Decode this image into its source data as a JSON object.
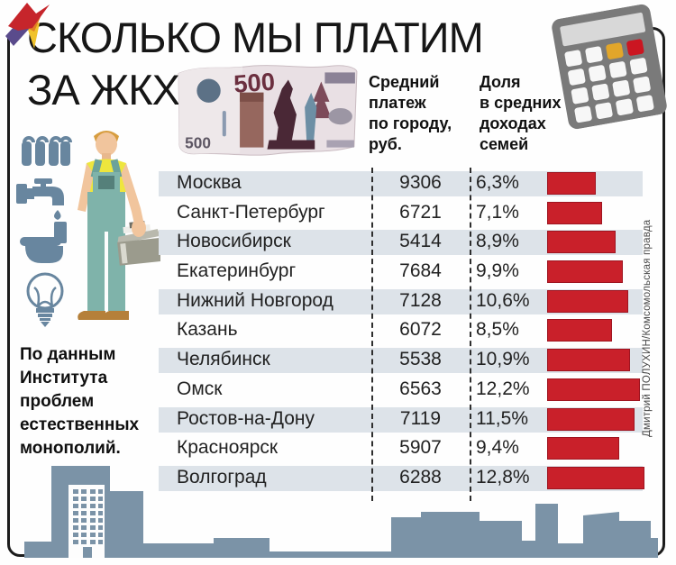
{
  "title": {
    "line1": "СКОЛЬКО МЫ ПЛАТИМ",
    "line2": "ЗА ЖКХ"
  },
  "columns": {
    "payment": "Средний\nплатеж\nпо городу,\nруб.",
    "share": "Доля\nв средних\nдоходах\nсемей"
  },
  "source_note": "По данным\nИнститута\nпроблем\nестественных\nмонополий.",
  "credit": "Дмитрий ПОЛУХИН/Комсомольская правда",
  "banknote": {
    "big": "500",
    "small": "500"
  },
  "icons": {
    "left_panel": [
      "radiator-icon",
      "water-tap-icon",
      "toilet-icon",
      "light-bulb-icon"
    ],
    "top_right": "calculator-icon",
    "figure": "plumber-with-toolbox",
    "bottom": "city-skyline",
    "logo": "firebird-logo"
  },
  "colors": {
    "bar_red": "#c9202a",
    "bar_border": "#9e1420",
    "row_alt": "#dde3e9",
    "skyline_blue": "#7b93a7",
    "icon_blue": "#68869f",
    "calc_yellow": "#e2a62a",
    "calc_red": "#cb1621"
  },
  "table": {
    "rows": [
      {
        "city": "Москва",
        "payment": "9306",
        "share": "6,3%"
      },
      {
        "city": "Санкт-Петербург",
        "payment": "6721",
        "share": "7,1%"
      },
      {
        "city": "Новосибирск",
        "payment": "5414",
        "share": "8,9%"
      },
      {
        "city": "Екатеринбург",
        "payment": "7684",
        "share": "9,9%"
      },
      {
        "city": "Нижний Новгород",
        "payment": "7128",
        "share": "10,6%"
      },
      {
        "city": "Казань",
        "payment": "6072",
        "share": "8,5%"
      },
      {
        "city": "Челябинск",
        "payment": "5538",
        "share": "10,9%"
      },
      {
        "city": "Омск",
        "payment": "6563",
        "share": "12,2%"
      },
      {
        "city": "Ростов-на-Дону",
        "payment": "7119",
        "share": "11,5%"
      },
      {
        "city": "Красноярск",
        "payment": "5907",
        "share": "9,4%"
      },
      {
        "city": "Волгоград",
        "payment": "6288",
        "share": "12,8%"
      }
    ]
  },
  "chart_data": {
    "type": "bar",
    "title": "СКОЛЬКО МЫ ПЛАТИМ ЗА ЖКХ",
    "categories": [
      "Москва",
      "Санкт-Петербург",
      "Новосибирск",
      "Екатеринбург",
      "Нижний Новгород",
      "Казань",
      "Челябинск",
      "Омск",
      "Ростов-на-Дону",
      "Красноярск",
      "Волгоград"
    ],
    "series": [
      {
        "name": "Средний платеж по городу, руб.",
        "values": [
          9306,
          6721,
          5414,
          7684,
          7128,
          6072,
          5538,
          6563,
          7119,
          5907,
          6288
        ]
      },
      {
        "name": "Доля в средних доходах семей, %",
        "values": [
          6.3,
          7.1,
          8.9,
          9.9,
          10.6,
          8.5,
          10.9,
          12.2,
          11.5,
          9.4,
          12.8
        ]
      }
    ],
    "bar_series_shown_as_bars": "Доля в средних доходах семей, %",
    "bar_axis_max": 12.8,
    "orientation": "horizontal",
    "grid": false,
    "legend_position": "top",
    "source": "По данным Института проблем естественных монополий."
  }
}
